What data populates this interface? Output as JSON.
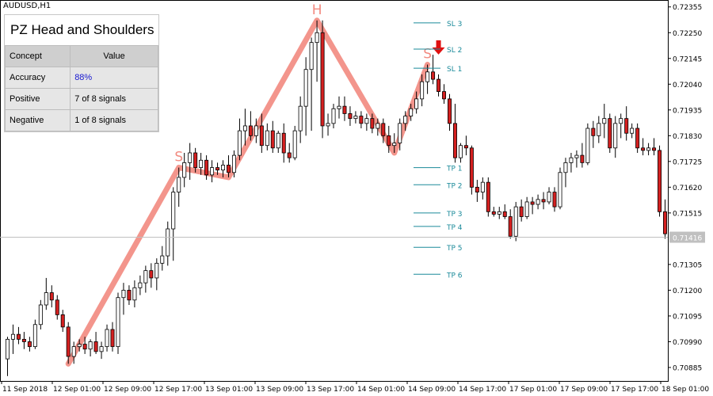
{
  "symbol": "AUDUSD,H1",
  "panel": {
    "title": "PZ Head and Shoulders",
    "col_concept": "Concept",
    "col_value": "Value",
    "rows": [
      {
        "concept": "Accuracy",
        "value": "88%",
        "highlight": true
      },
      {
        "concept": "Positive",
        "value": "7 of 8 signals",
        "highlight": false
      },
      {
        "concept": "Negative",
        "value": "1 of 8 signals",
        "highlight": false
      }
    ]
  },
  "price_axis": {
    "labels": [
      "0.72355",
      "0.72250",
      "0.72145",
      "0.72040",
      "0.71935",
      "0.71830",
      "0.71725",
      "0.71620",
      "0.71515",
      "0.71305",
      "0.71200",
      "0.71095",
      "0.70990",
      "0.70885"
    ],
    "current_price": "0.71416"
  },
  "time_axis": {
    "labels": [
      "11 Sep 2018",
      "12 Sep 01:00",
      "12 Sep 09:00",
      "12 Sep 17:00",
      "13 Sep 01:00",
      "13 Sep 09:00",
      "13 Sep 17:00",
      "14 Sep 01:00",
      "14 Sep 09:00",
      "14 Sep 17:00",
      "17 Sep 01:00",
      "17 Sep 09:00",
      "17 Sep 17:00",
      "18 Sep 01:00"
    ]
  },
  "pattern_labels": {
    "left_shoulder": "S",
    "head": "H",
    "right_shoulder": "S"
  },
  "levels": [
    {
      "label": "SL 3",
      "price": 0.7229
    },
    {
      "label": "SL 2",
      "price": 0.72183
    },
    {
      "label": "SL 1",
      "price": 0.72105
    },
    {
      "label": "TP 1",
      "price": 0.717
    },
    {
      "label": "TP 2",
      "price": 0.7163
    },
    {
      "label": "TP 3",
      "price": 0.71515
    },
    {
      "label": "TP 4",
      "price": 0.7146
    },
    {
      "label": "TP 5",
      "price": 0.71375
    },
    {
      "label": "TP 6",
      "price": 0.71265
    }
  ],
  "colors": {
    "bull": "#ffffff",
    "bear": "#d42020",
    "pattern": "#f28a80",
    "level": "#1a8a9a",
    "arrow": "#e01010"
  },
  "chart_data": {
    "type": "candlestick",
    "title": "AUDUSD,H1",
    "current_price": 0.71416,
    "ylim": [
      0.7083,
      0.7238
    ],
    "candles": [
      {
        "o": 0.7092,
        "h": 0.7101,
        "l": 0.7085,
        "c": 0.71
      },
      {
        "o": 0.71,
        "h": 0.7106,
        "l": 0.7094,
        "c": 0.7102
      },
      {
        "o": 0.7102,
        "h": 0.7105,
        "l": 0.7098,
        "c": 0.71
      },
      {
        "o": 0.71,
        "h": 0.7103,
        "l": 0.7096,
        "c": 0.7099
      },
      {
        "o": 0.7099,
        "h": 0.7101,
        "l": 0.7095,
        "c": 0.7097
      },
      {
        "o": 0.7097,
        "h": 0.7108,
        "l": 0.7096,
        "c": 0.7106
      },
      {
        "o": 0.7106,
        "h": 0.7116,
        "l": 0.7104,
        "c": 0.7114
      },
      {
        "o": 0.7114,
        "h": 0.7125,
        "l": 0.7112,
        "c": 0.7119
      },
      {
        "o": 0.7119,
        "h": 0.7122,
        "l": 0.7113,
        "c": 0.7116
      },
      {
        "o": 0.7116,
        "h": 0.7118,
        "l": 0.7108,
        "c": 0.711
      },
      {
        "o": 0.711,
        "h": 0.7112,
        "l": 0.7103,
        "c": 0.7105
      },
      {
        "o": 0.7105,
        "h": 0.7107,
        "l": 0.709,
        "c": 0.7093
      },
      {
        "o": 0.7093,
        "h": 0.7099,
        "l": 0.709,
        "c": 0.7097
      },
      {
        "o": 0.7097,
        "h": 0.71,
        "l": 0.7095,
        "c": 0.7098
      },
      {
        "o": 0.7098,
        "h": 0.7101,
        "l": 0.7094,
        "c": 0.7096
      },
      {
        "o": 0.7096,
        "h": 0.71,
        "l": 0.7093,
        "c": 0.7099
      },
      {
        "o": 0.7099,
        "h": 0.7103,
        "l": 0.7094,
        "c": 0.7095
      },
      {
        "o": 0.7095,
        "h": 0.7099,
        "l": 0.7092,
        "c": 0.7097
      },
      {
        "o": 0.7097,
        "h": 0.7106,
        "l": 0.7095,
        "c": 0.7104
      },
      {
        "o": 0.7104,
        "h": 0.7107,
        "l": 0.7095,
        "c": 0.7097
      },
      {
        "o": 0.7097,
        "h": 0.7119,
        "l": 0.7094,
        "c": 0.7117
      },
      {
        "o": 0.7117,
        "h": 0.7123,
        "l": 0.711,
        "c": 0.712
      },
      {
        "o": 0.712,
        "h": 0.7122,
        "l": 0.7114,
        "c": 0.7116
      },
      {
        "o": 0.7116,
        "h": 0.7124,
        "l": 0.7113,
        "c": 0.7121
      },
      {
        "o": 0.7121,
        "h": 0.7126,
        "l": 0.7118,
        "c": 0.7123
      },
      {
        "o": 0.7123,
        "h": 0.713,
        "l": 0.7119,
        "c": 0.7128
      },
      {
        "o": 0.7128,
        "h": 0.7131,
        "l": 0.7121,
        "c": 0.7125
      },
      {
        "o": 0.7125,
        "h": 0.7133,
        "l": 0.712,
        "c": 0.7131
      },
      {
        "o": 0.7131,
        "h": 0.7138,
        "l": 0.7128,
        "c": 0.7134
      },
      {
        "o": 0.7134,
        "h": 0.7148,
        "l": 0.713,
        "c": 0.7145
      },
      {
        "o": 0.7145,
        "h": 0.7162,
        "l": 0.7132,
        "c": 0.716
      },
      {
        "o": 0.716,
        "h": 0.717,
        "l": 0.7154,
        "c": 0.7166
      },
      {
        "o": 0.7166,
        "h": 0.7176,
        "l": 0.7162,
        "c": 0.7172
      },
      {
        "o": 0.7172,
        "h": 0.718,
        "l": 0.7165,
        "c": 0.7176
      },
      {
        "o": 0.7176,
        "h": 0.7178,
        "l": 0.7168,
        "c": 0.717
      },
      {
        "o": 0.717,
        "h": 0.7176,
        "l": 0.7167,
        "c": 0.7173
      },
      {
        "o": 0.7173,
        "h": 0.7175,
        "l": 0.7165,
        "c": 0.7167
      },
      {
        "o": 0.7167,
        "h": 0.7173,
        "l": 0.7164,
        "c": 0.717
      },
      {
        "o": 0.717,
        "h": 0.7172,
        "l": 0.7167,
        "c": 0.7169
      },
      {
        "o": 0.7169,
        "h": 0.7173,
        "l": 0.7166,
        "c": 0.7171
      },
      {
        "o": 0.7171,
        "h": 0.7175,
        "l": 0.7166,
        "c": 0.7168
      },
      {
        "o": 0.7168,
        "h": 0.7177,
        "l": 0.7166,
        "c": 0.7175
      },
      {
        "o": 0.7175,
        "h": 0.719,
        "l": 0.7173,
        "c": 0.7185
      },
      {
        "o": 0.7185,
        "h": 0.7194,
        "l": 0.7179,
        "c": 0.7187
      },
      {
        "o": 0.7187,
        "h": 0.7193,
        "l": 0.7181,
        "c": 0.7183
      },
      {
        "o": 0.7183,
        "h": 0.719,
        "l": 0.718,
        "c": 0.7187
      },
      {
        "o": 0.7187,
        "h": 0.7192,
        "l": 0.7176,
        "c": 0.7179
      },
      {
        "o": 0.7179,
        "h": 0.7188,
        "l": 0.7177,
        "c": 0.7185
      },
      {
        "o": 0.7185,
        "h": 0.7189,
        "l": 0.7176,
        "c": 0.7178
      },
      {
        "o": 0.7178,
        "h": 0.7185,
        "l": 0.7176,
        "c": 0.7184
      },
      {
        "o": 0.7184,
        "h": 0.7188,
        "l": 0.7172,
        "c": 0.7176
      },
      {
        "o": 0.7176,
        "h": 0.718,
        "l": 0.7172,
        "c": 0.7174
      },
      {
        "o": 0.7174,
        "h": 0.7187,
        "l": 0.7173,
        "c": 0.7185
      },
      {
        "o": 0.7185,
        "h": 0.7199,
        "l": 0.718,
        "c": 0.7195
      },
      {
        "o": 0.7195,
        "h": 0.7215,
        "l": 0.7183,
        "c": 0.721
      },
      {
        "o": 0.721,
        "h": 0.7223,
        "l": 0.7185,
        "c": 0.7221
      },
      {
        "o": 0.7221,
        "h": 0.723,
        "l": 0.7205,
        "c": 0.7225
      },
      {
        "o": 0.7225,
        "h": 0.723,
        "l": 0.7182,
        "c": 0.7187
      },
      {
        "o": 0.7187,
        "h": 0.7192,
        "l": 0.7183,
        "c": 0.7188
      },
      {
        "o": 0.7188,
        "h": 0.7196,
        "l": 0.7186,
        "c": 0.7194
      },
      {
        "o": 0.7194,
        "h": 0.7199,
        "l": 0.719,
        "c": 0.7195
      },
      {
        "o": 0.7195,
        "h": 0.7199,
        "l": 0.7189,
        "c": 0.7192
      },
      {
        "o": 0.7192,
        "h": 0.7195,
        "l": 0.7187,
        "c": 0.719
      },
      {
        "o": 0.719,
        "h": 0.7193,
        "l": 0.7188,
        "c": 0.7191
      },
      {
        "o": 0.7191,
        "h": 0.7193,
        "l": 0.7186,
        "c": 0.7188
      },
      {
        "o": 0.7188,
        "h": 0.7192,
        "l": 0.7185,
        "c": 0.719
      },
      {
        "o": 0.719,
        "h": 0.7192,
        "l": 0.7184,
        "c": 0.7186
      },
      {
        "o": 0.7186,
        "h": 0.719,
        "l": 0.7183,
        "c": 0.7188
      },
      {
        "o": 0.7188,
        "h": 0.719,
        "l": 0.718,
        "c": 0.7183
      },
      {
        "o": 0.7183,
        "h": 0.7187,
        "l": 0.7176,
        "c": 0.7179
      },
      {
        "o": 0.7179,
        "h": 0.7184,
        "l": 0.7176,
        "c": 0.718
      },
      {
        "o": 0.718,
        "h": 0.719,
        "l": 0.7177,
        "c": 0.7188
      },
      {
        "o": 0.7188,
        "h": 0.7193,
        "l": 0.7185,
        "c": 0.7191
      },
      {
        "o": 0.7191,
        "h": 0.7196,
        "l": 0.7189,
        "c": 0.7194
      },
      {
        "o": 0.7194,
        "h": 0.7201,
        "l": 0.7192,
        "c": 0.7198
      },
      {
        "o": 0.7198,
        "h": 0.7208,
        "l": 0.7195,
        "c": 0.7205
      },
      {
        "o": 0.7205,
        "h": 0.7212,
        "l": 0.72,
        "c": 0.7209
      },
      {
        "o": 0.7209,
        "h": 0.7216,
        "l": 0.7204,
        "c": 0.7206
      },
      {
        "o": 0.7206,
        "h": 0.7208,
        "l": 0.7199,
        "c": 0.7201
      },
      {
        "o": 0.7201,
        "h": 0.7204,
        "l": 0.7196,
        "c": 0.7198
      },
      {
        "o": 0.7198,
        "h": 0.72,
        "l": 0.7185,
        "c": 0.7188
      },
      {
        "o": 0.7188,
        "h": 0.7196,
        "l": 0.7172,
        "c": 0.7174
      },
      {
        "o": 0.7174,
        "h": 0.718,
        "l": 0.7172,
        "c": 0.7179
      },
      {
        "o": 0.7179,
        "h": 0.7183,
        "l": 0.7175,
        "c": 0.7178
      },
      {
        "o": 0.7178,
        "h": 0.7179,
        "l": 0.7159,
        "c": 0.7162
      },
      {
        "o": 0.7162,
        "h": 0.7165,
        "l": 0.7156,
        "c": 0.716
      },
      {
        "o": 0.716,
        "h": 0.7166,
        "l": 0.7157,
        "c": 0.7164
      },
      {
        "o": 0.7164,
        "h": 0.7166,
        "l": 0.715,
        "c": 0.7152
      },
      {
        "o": 0.7152,
        "h": 0.7154,
        "l": 0.715,
        "c": 0.7151
      },
      {
        "o": 0.7151,
        "h": 0.7154,
        "l": 0.7149,
        "c": 0.7152
      },
      {
        "o": 0.7152,
        "h": 0.7155,
        "l": 0.7149,
        "c": 0.715
      },
      {
        "o": 0.715,
        "h": 0.7153,
        "l": 0.7141,
        "c": 0.7142
      },
      {
        "o": 0.7142,
        "h": 0.7156,
        "l": 0.714,
        "c": 0.7154
      },
      {
        "o": 0.7154,
        "h": 0.7157,
        "l": 0.7148,
        "c": 0.715
      },
      {
        "o": 0.715,
        "h": 0.7158,
        "l": 0.7149,
        "c": 0.7156
      },
      {
        "o": 0.7156,
        "h": 0.7158,
        "l": 0.7151,
        "c": 0.7155
      },
      {
        "o": 0.7155,
        "h": 0.7159,
        "l": 0.7153,
        "c": 0.7157
      },
      {
        "o": 0.7157,
        "h": 0.716,
        "l": 0.7153,
        "c": 0.7156
      },
      {
        "o": 0.7156,
        "h": 0.7162,
        "l": 0.7155,
        "c": 0.716
      },
      {
        "o": 0.716,
        "h": 0.7162,
        "l": 0.7152,
        "c": 0.7154
      },
      {
        "o": 0.7154,
        "h": 0.717,
        "l": 0.7153,
        "c": 0.7168
      },
      {
        "o": 0.7168,
        "h": 0.7174,
        "l": 0.7162,
        "c": 0.7172
      },
      {
        "o": 0.7172,
        "h": 0.7176,
        "l": 0.7168,
        "c": 0.7174
      },
      {
        "o": 0.7174,
        "h": 0.7177,
        "l": 0.717,
        "c": 0.7175
      },
      {
        "o": 0.7175,
        "h": 0.718,
        "l": 0.717,
        "c": 0.7172
      },
      {
        "o": 0.7172,
        "h": 0.7188,
        "l": 0.7171,
        "c": 0.7186
      },
      {
        "o": 0.7186,
        "h": 0.7189,
        "l": 0.7178,
        "c": 0.7183
      },
      {
        "o": 0.7183,
        "h": 0.7191,
        "l": 0.718,
        "c": 0.7188
      },
      {
        "o": 0.7188,
        "h": 0.7196,
        "l": 0.7182,
        "c": 0.719
      },
      {
        "o": 0.719,
        "h": 0.7192,
        "l": 0.7176,
        "c": 0.7178
      },
      {
        "o": 0.7178,
        "h": 0.7191,
        "l": 0.7174,
        "c": 0.7188
      },
      {
        "o": 0.7188,
        "h": 0.7192,
        "l": 0.7182,
        "c": 0.719
      },
      {
        "o": 0.719,
        "h": 0.7195,
        "l": 0.7181,
        "c": 0.7184
      },
      {
        "o": 0.7184,
        "h": 0.7188,
        "l": 0.7182,
        "c": 0.7186
      },
      {
        "o": 0.7186,
        "h": 0.7188,
        "l": 0.7176,
        "c": 0.7178
      },
      {
        "o": 0.7178,
        "h": 0.7182,
        "l": 0.7175,
        "c": 0.7177
      },
      {
        "o": 0.7177,
        "h": 0.718,
        "l": 0.7175,
        "c": 0.7178
      },
      {
        "o": 0.7178,
        "h": 0.7182,
        "l": 0.7175,
        "c": 0.7177
      },
      {
        "o": 0.7177,
        "h": 0.7179,
        "l": 0.715,
        "c": 0.7152
      },
      {
        "o": 0.7152,
        "h": 0.7157,
        "l": 0.7141,
        "c": 0.7143
      }
    ]
  }
}
